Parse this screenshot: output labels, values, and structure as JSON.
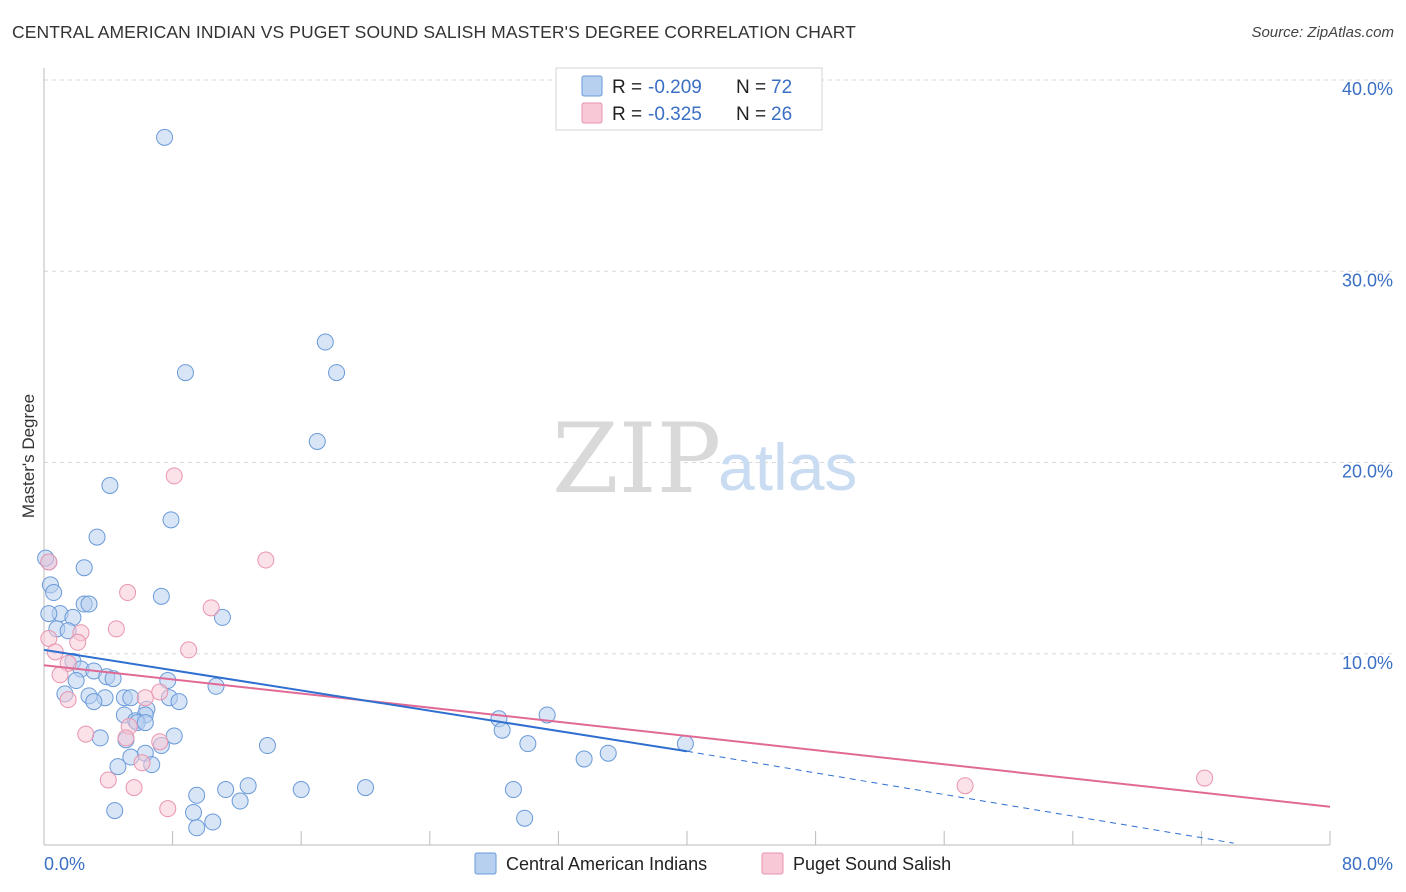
{
  "title": "CENTRAL AMERICAN INDIAN VS PUGET SOUND SALISH MASTER'S DEGREE CORRELATION CHART",
  "source": "Source: ZipAtlas.com",
  "watermark": {
    "zip": "ZIP",
    "atlas": "atlas"
  },
  "colors": {
    "blue_fill": "#b8d0f0",
    "blue_stroke": "#6a9ad8",
    "blue_line": "#2f6fd0",
    "pink_fill": "#f8c8d6",
    "pink_stroke": "#e895b0",
    "pink_line": "#e06a95",
    "grid": "#d8d8d8",
    "axis_text": "#3a6fc4"
  },
  "legend": {
    "rows": [
      {
        "r_label": "R =",
        "r_value": "-0.209",
        "n_label": "N =",
        "n_value": "72"
      },
      {
        "r_label": "R =",
        "r_value": "-0.325",
        "n_label": "N =",
        "n_value": "26"
      }
    ]
  },
  "bottom_legend": [
    "Central American Indians",
    "Puget Sound Salish"
  ],
  "chart_data": {
    "type": "scatter",
    "title": "CENTRAL AMERICAN INDIAN VS PUGET SOUND SALISH MASTER'S DEGREE CORRELATION CHART",
    "xlabel": "",
    "ylabel": "Master's Degree",
    "xlim": [
      0,
      80
    ],
    "ylim": [
      0,
      40
    ],
    "x_tick_labels": [
      "0.0%",
      "80.0%"
    ],
    "y_ticks": [
      10,
      20,
      30,
      40
    ],
    "y_tick_labels": [
      "10.0%",
      "20.0%",
      "30.0%",
      "40.0%"
    ],
    "grid": true,
    "series": [
      {
        "name": "Central American Indians",
        "r": -0.209,
        "n": 72,
        "trend": {
          "x0": 0,
          "y0": 10.2,
          "x1": 40,
          "y1": 4.9,
          "dashed_to_x": 74,
          "dashed_to_y": 0.1
        },
        "points": [
          [
            7.5,
            37.0
          ],
          [
            8.8,
            24.7
          ],
          [
            17.5,
            26.3
          ],
          [
            18.2,
            24.7
          ],
          [
            17.0,
            21.1
          ],
          [
            4.1,
            18.8
          ],
          [
            7.9,
            17.0
          ],
          [
            3.3,
            16.1
          ],
          [
            0.3,
            14.8
          ],
          [
            2.5,
            14.5
          ],
          [
            0.4,
            13.6
          ],
          [
            0.6,
            13.2
          ],
          [
            7.3,
            13.0
          ],
          [
            2.5,
            12.6
          ],
          [
            2.8,
            12.6
          ],
          [
            1.0,
            12.1
          ],
          [
            1.8,
            11.9
          ],
          [
            11.1,
            11.9
          ],
          [
            0.8,
            11.3
          ],
          [
            1.5,
            11.2
          ],
          [
            1.8,
            9.6
          ],
          [
            2.3,
            9.2
          ],
          [
            3.1,
            9.1
          ],
          [
            3.9,
            8.8
          ],
          [
            4.3,
            8.7
          ],
          [
            2.0,
            8.6
          ],
          [
            7.7,
            8.6
          ],
          [
            10.7,
            8.3
          ],
          [
            1.3,
            7.9
          ],
          [
            2.8,
            7.8
          ],
          [
            3.8,
            7.7
          ],
          [
            5.0,
            7.7
          ],
          [
            5.4,
            7.7
          ],
          [
            7.8,
            7.7
          ],
          [
            3.1,
            7.5
          ],
          [
            8.4,
            7.5
          ],
          [
            6.4,
            7.1
          ],
          [
            5.0,
            6.8
          ],
          [
            6.3,
            6.8
          ],
          [
            5.7,
            6.5
          ],
          [
            5.8,
            6.4
          ],
          [
            6.3,
            6.4
          ],
          [
            28.3,
            6.6
          ],
          [
            31.3,
            6.8
          ],
          [
            28.5,
            6.0
          ],
          [
            8.1,
            5.7
          ],
          [
            3.5,
            5.6
          ],
          [
            5.1,
            5.5
          ],
          [
            30.1,
            5.3
          ],
          [
            7.3,
            5.2
          ],
          [
            13.9,
            5.2
          ],
          [
            39.9,
            5.3
          ],
          [
            6.3,
            4.8
          ],
          [
            5.4,
            4.6
          ],
          [
            35.1,
            4.8
          ],
          [
            33.6,
            4.5
          ],
          [
            6.7,
            4.2
          ],
          [
            4.6,
            4.1
          ],
          [
            12.7,
            3.1
          ],
          [
            20.0,
            3.0
          ],
          [
            11.3,
            2.9
          ],
          [
            16.0,
            2.9
          ],
          [
            29.2,
            2.9
          ],
          [
            9.5,
            2.6
          ],
          [
            12.2,
            2.3
          ],
          [
            4.4,
            1.8
          ],
          [
            9.3,
            1.7
          ],
          [
            10.5,
            1.2
          ],
          [
            29.9,
            1.4
          ],
          [
            9.5,
            0.9
          ],
          [
            0.1,
            15.0
          ],
          [
            0.3,
            12.1
          ]
        ]
      },
      {
        "name": "Puget Sound Salish",
        "r": -0.325,
        "n": 26,
        "trend": {
          "x0": 0,
          "y0": 9.4,
          "x1": 80,
          "y1": 2.0
        },
        "points": [
          [
            8.1,
            19.3
          ],
          [
            13.8,
            14.9
          ],
          [
            0.3,
            14.8
          ],
          [
            5.2,
            13.2
          ],
          [
            10.4,
            12.4
          ],
          [
            4.5,
            11.3
          ],
          [
            2.3,
            11.1
          ],
          [
            0.3,
            10.8
          ],
          [
            2.1,
            10.6
          ],
          [
            9.0,
            10.2
          ],
          [
            0.7,
            10.1
          ],
          [
            1.5,
            9.5
          ],
          [
            1.0,
            8.9
          ],
          [
            7.2,
            8.0
          ],
          [
            6.3,
            7.7
          ],
          [
            1.5,
            7.6
          ],
          [
            5.3,
            6.2
          ],
          [
            2.6,
            5.8
          ],
          [
            5.1,
            5.6
          ],
          [
            7.2,
            5.4
          ],
          [
            6.1,
            4.3
          ],
          [
            4.0,
            3.4
          ],
          [
            5.6,
            3.0
          ],
          [
            57.3,
            3.1
          ],
          [
            72.2,
            3.5
          ],
          [
            7.7,
            1.9
          ]
        ]
      }
    ]
  }
}
